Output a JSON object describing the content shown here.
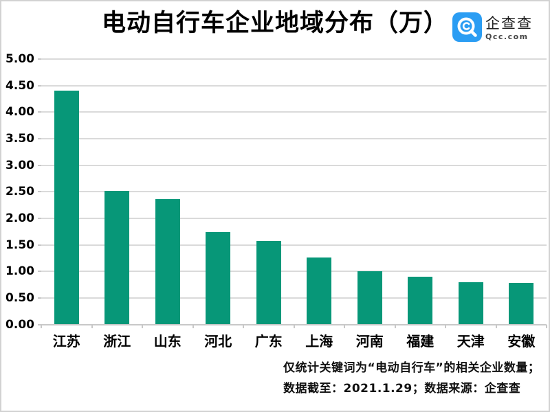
{
  "chart_data": {
    "type": "bar",
    "title": "电动自行车企业地域分布（万）",
    "categories": [
      "江苏",
      "浙江",
      "山东",
      "河北",
      "广东",
      "上海",
      "河南",
      "福建",
      "天津",
      "安徽"
    ],
    "values": [
      4.41,
      2.52,
      2.36,
      1.74,
      1.57,
      1.26,
      1.0,
      0.9,
      0.79,
      0.78
    ],
    "xlabel": "",
    "ylabel": "",
    "ylim": [
      0,
      5
    ],
    "ytick_step": 0.5,
    "ytick_labels": [
      "0.00",
      "0.50",
      "1.00",
      "1.50",
      "2.00",
      "2.50",
      "3.00",
      "3.50",
      "4.00",
      "4.50",
      "5.00"
    ],
    "grid": true,
    "legend": false,
    "bar_color": "#079778",
    "gridline_color": "#dadada"
  },
  "logo": {
    "name": "企查查",
    "domain": "Qcc.com",
    "brand_color": "#2b9df3"
  },
  "footnote": {
    "line1": "仅统计关键词为“电动自行车”的相关企业数量；",
    "line2": "数据截至：2021.1.29；数据来源：企查查"
  }
}
